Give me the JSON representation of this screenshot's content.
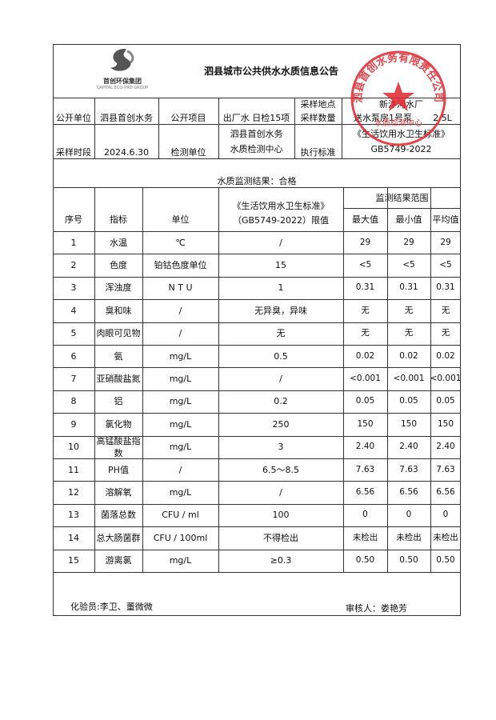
{
  "title": "泗县城市公共供水水质信息公告",
  "logo": {
    "name": "首创环保集团",
    "sub": "CAPITAL ECO-PRO GROUP"
  },
  "stamp": {
    "text": "泗县首创水务有限责任公司",
    "sub": "水质检测中心",
    "color": "#e0262e"
  },
  "info": {
    "unit_label": "公开单位",
    "unit": "泗县首创水务",
    "item_label": "公开项目",
    "item": "出厂水 日检15项",
    "loc_label": "采样地点",
    "qty_label": "采样数量",
    "loc": "新汴河水厂",
    "loc2": "送水泵房1号泵",
    "qty": "2.5L",
    "period_label": "采样时段",
    "period": "2024.6.30",
    "lab_label": "检测单位",
    "lab1": "泗县首创水务",
    "lab2": "水质检测中心",
    "std_label": "执行标准",
    "std1": "《生活饮用水卫生标准》",
    "std2": "GB5749-2022"
  },
  "result": "水质监测结果：合格",
  "headers": {
    "no": "序号",
    "index": "指标",
    "unit": "单位",
    "limit1": "《生活饮用水卫生标准》",
    "limit2": "（GB5749-2022）限值",
    "range": "监测结果范围",
    "max": "最大值",
    "min": "最小值",
    "avg": "平均值"
  },
  "rows": [
    [
      "1",
      "水温",
      "℃",
      "/",
      "29",
      "29",
      "29"
    ],
    [
      "2",
      "色度",
      "铂钴色度单位",
      "15",
      "<5",
      "<5",
      "<5"
    ],
    [
      "3",
      "浑浊度",
      "N T U",
      "1",
      "0.31",
      "0.31",
      "0.31"
    ],
    [
      "4",
      "臭和味",
      "/",
      "无异臭，异味",
      "无",
      "无",
      "无"
    ],
    [
      "5",
      "肉眼可见物",
      "/",
      "无",
      "无",
      "无",
      "无"
    ],
    [
      "6",
      "氨",
      "mg/L",
      "0.5",
      "0.02",
      "0.02",
      "0.02"
    ],
    [
      "7",
      "亚硝酸盐氮",
      "mg/L",
      "/",
      "<0.001",
      "<0.001",
      "<0.001"
    ],
    [
      "8",
      "铝",
      "mg/L",
      "0.2",
      "0.05",
      "0.05",
      "0.05"
    ],
    [
      "9",
      "氯化物",
      "mg/L",
      "250",
      "150",
      "150",
      "150"
    ],
    [
      "10",
      "高锰酸盐指数",
      "mg/L",
      "3",
      "2.40",
      "2.40",
      "2.40"
    ],
    [
      "11",
      "PH值",
      "/",
      "6.5～8.5",
      "7.63",
      "7.63",
      "7.63"
    ],
    [
      "12",
      "溶解氧",
      "mg/L",
      "/",
      "6.56",
      "6.56",
      "6.56"
    ],
    [
      "13",
      "菌落总数",
      "CFU / ml",
      "100",
      "0",
      "0",
      "0"
    ],
    [
      "14",
      "总大肠菌群",
      "CFU / 100ml",
      "不得检出",
      "未检出",
      "未检出",
      "未检出"
    ],
    [
      "15",
      "游离氯",
      "mg/L",
      "≥0.3",
      "0.50",
      "0.50",
      "0.50"
    ]
  ],
  "footer": {
    "tester": "化验员:李卫、董微微",
    "reviewer": "审核人：娄艳芳"
  }
}
